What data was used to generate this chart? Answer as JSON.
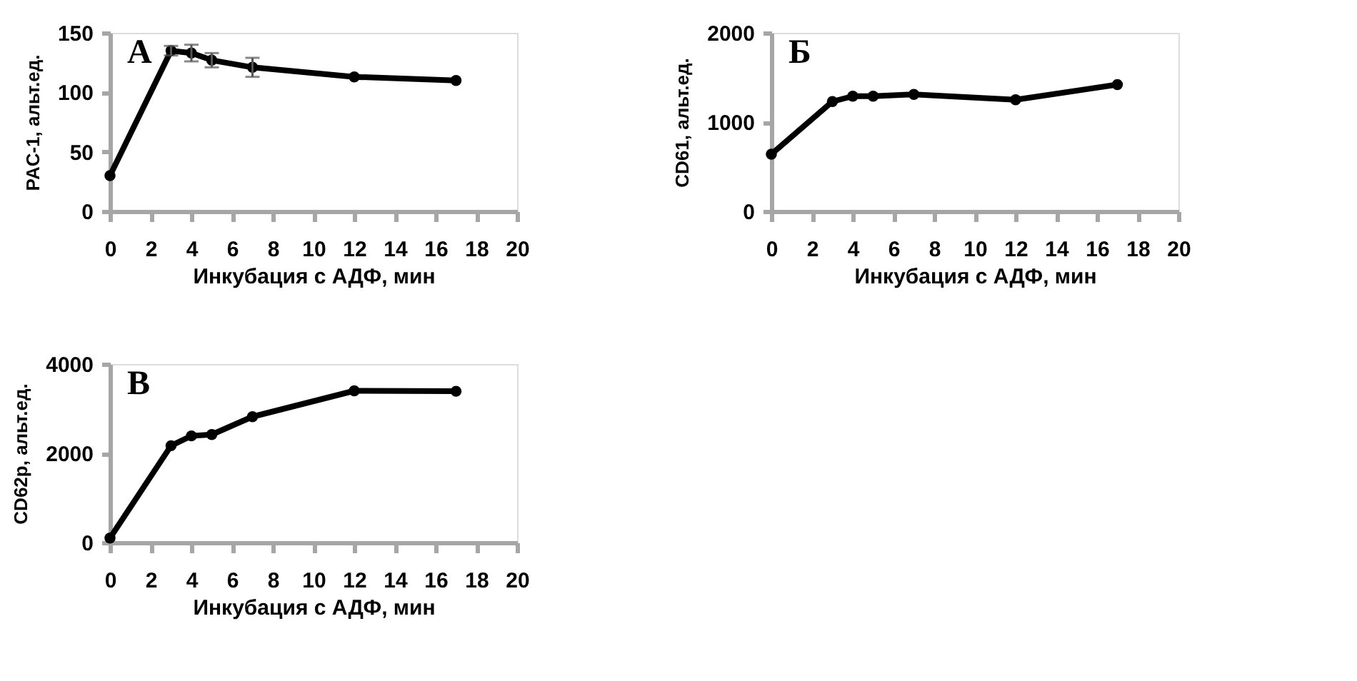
{
  "chart_data": [
    {
      "type": "line",
      "x": [
        0,
        3,
        4,
        5,
        7,
        12,
        17
      ],
      "xlim": [
        0,
        20
      ],
      "xticks": [
        0,
        2,
        4,
        6,
        8,
        10,
        12,
        14,
        16,
        18,
        20
      ],
      "ylim": [
        0,
        150
      ],
      "yticks": [
        0,
        50,
        100,
        150
      ],
      "xlabel": "Инкубация с АДФ, мин",
      "ylabel": "PAC-1, альт.ед.",
      "annotations": [
        "А"
      ],
      "marker": "circle",
      "line_style": "solid",
      "grid": false,
      "series": [
        {
          "color": "#000000",
          "values": [
            30,
            135,
            133,
            127,
            121,
            113,
            110
          ],
          "errors": [
            null,
            4,
            7,
            6,
            8,
            null,
            null
          ]
        }
      ]
    },
    {
      "type": "line",
      "x": [
        0,
        3,
        4,
        5,
        7,
        12,
        17
      ],
      "xlim": [
        0,
        20
      ],
      "xticks": [
        0,
        2,
        4,
        6,
        8,
        10,
        12,
        14,
        16,
        18,
        20
      ],
      "ylim": [
        0,
        2000
      ],
      "yticks": [
        0,
        1000,
        2000
      ],
      "xlabel": "Инкубация с АДФ, мин",
      "ylabel": "CD61, альт.ед.",
      "annotations": [
        "Б"
      ],
      "marker": "circle",
      "line_style": "solid",
      "grid": false,
      "series": [
        {
          "color": "#000000",
          "values": [
            640,
            1230,
            1290,
            1290,
            1310,
            1250,
            1420
          ]
        }
      ]
    },
    {
      "type": "line",
      "x": [
        0,
        3,
        4,
        5,
        7,
        12,
        17
      ],
      "xlim": [
        0,
        20
      ],
      "xticks": [
        0,
        2,
        4,
        6,
        8,
        10,
        12,
        14,
        16,
        18,
        20
      ],
      "ylim": [
        0,
        4000
      ],
      "yticks": [
        0,
        2000,
        4000
      ],
      "xlabel": "Инкубация с АДФ, мин",
      "ylabel": "CD62p, альт.ед.",
      "annotations": [
        "В"
      ],
      "marker": "circle",
      "line_style": "solid",
      "grid": false,
      "series": [
        {
          "color": "#000000",
          "values": [
            100,
            2170,
            2390,
            2420,
            2820,
            3400,
            3390
          ]
        }
      ]
    }
  ]
}
